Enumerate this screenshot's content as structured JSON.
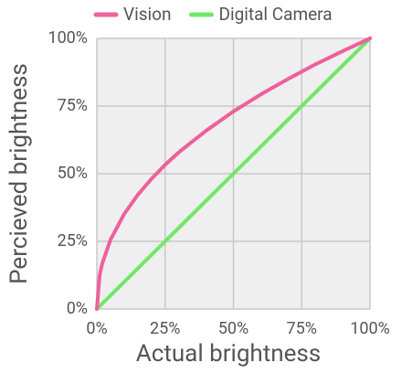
{
  "chart_data": {
    "type": "line",
    "x": [
      0,
      1,
      2,
      5,
      10,
      15,
      20,
      25,
      30,
      40,
      50,
      60,
      70,
      75,
      80,
      90,
      100
    ],
    "series": [
      {
        "name": "Vision",
        "color": "#ef5f9c",
        "values": [
          0,
          12.3,
          16.9,
          25.6,
          35.1,
          42.2,
          48.1,
          53.3,
          57.9,
          65.9,
          73.0,
          79.3,
          85.0,
          87.7,
          90.4,
          95.3,
          100
        ]
      },
      {
        "name": "Digital Camera",
        "color": "#6ee86a",
        "values": [
          0,
          1,
          2,
          5,
          10,
          15,
          20,
          25,
          30,
          40,
          50,
          60,
          70,
          75,
          80,
          90,
          100
        ]
      }
    ],
    "xlabel": "Actual brightness",
    "ylabel": "Percieved brightness",
    "xlim": [
      0,
      100
    ],
    "ylim": [
      0,
      100
    ],
    "xticks": [
      {
        "value": 0,
        "label": "0%"
      },
      {
        "value": 25,
        "label": "25%"
      },
      {
        "value": 50,
        "label": "50%"
      },
      {
        "value": 75,
        "label": "75%"
      },
      {
        "value": 100,
        "label": "100%"
      }
    ],
    "yticks": [
      {
        "value": 0,
        "label": "0%"
      },
      {
        "value": 25,
        "label": "25%"
      },
      {
        "value": 50,
        "label": "50%"
      },
      {
        "value": 75,
        "label": "75%"
      },
      {
        "value": 100,
        "label": "100%"
      }
    ],
    "grid": true
  }
}
